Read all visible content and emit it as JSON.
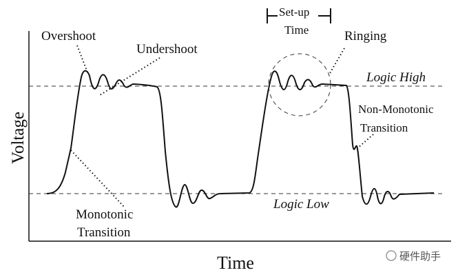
{
  "axes": {
    "y_label": "Voltage",
    "x_label": "Time"
  },
  "annotations": {
    "overshoot": "Overshoot",
    "undershoot": "Undershoot",
    "setup_time": [
      "Set-up",
      "Time"
    ],
    "ringing": "Ringing",
    "logic_high": "Logic High",
    "non_monotonic": [
      "Non-Monotonic",
      "Transition"
    ],
    "logic_low": "Logic Low",
    "monotonic": [
      "Monotonic",
      "Transition"
    ]
  },
  "watermark": "硬件助手"
}
